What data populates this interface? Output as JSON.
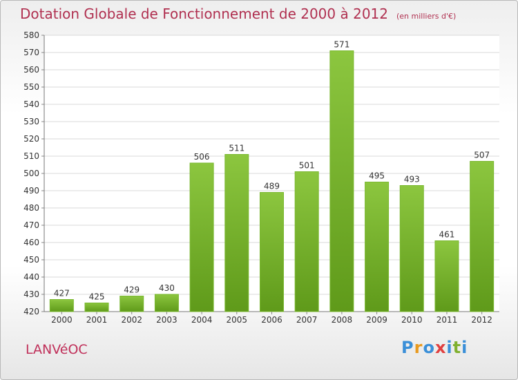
{
  "title": "Dotation Globale de Fonctionnement de 2000 à 2012",
  "subtitle": "(en milliers d'€)",
  "commune": "LANVéOC",
  "logo": {
    "letters": [
      "P",
      "r",
      "o",
      "x",
      "i",
      "t",
      "i"
    ],
    "colors": [
      "#3a8fd8",
      "#e89a20",
      "#3a8fd8",
      "#e04040",
      "#3a8fd8",
      "#80b030",
      "#3a8fd8"
    ]
  },
  "colors": {
    "bar": "#8cc63f",
    "bar_dark": "#5f9a1a",
    "title": "#b03050",
    "grid": "#d8d8d8"
  },
  "chart_data": {
    "type": "bar",
    "categories": [
      "2000",
      "2001",
      "2002",
      "2003",
      "2004",
      "2005",
      "2006",
      "2007",
      "2008",
      "2009",
      "2010",
      "2011",
      "2012"
    ],
    "values": [
      427,
      425,
      429,
      430,
      506,
      511,
      489,
      501,
      571,
      495,
      493,
      461,
      507
    ],
    "data_labels": [
      "427",
      "425",
      "429",
      "430",
      "506",
      "511",
      "489",
      "501",
      "571",
      "495",
      "493",
      "461",
      "507"
    ],
    "ylim": [
      420,
      580
    ],
    "yticks": [
      420,
      430,
      440,
      450,
      460,
      470,
      480,
      490,
      500,
      510,
      520,
      530,
      540,
      550,
      560,
      570,
      580
    ],
    "ytick_labels": [
      "420",
      "430",
      "440",
      "450",
      "460",
      "470",
      "480",
      "490",
      "500",
      "510",
      "520",
      "530",
      "540",
      "550",
      "560",
      "570",
      "580"
    ],
    "grid": true,
    "legend": "none"
  }
}
